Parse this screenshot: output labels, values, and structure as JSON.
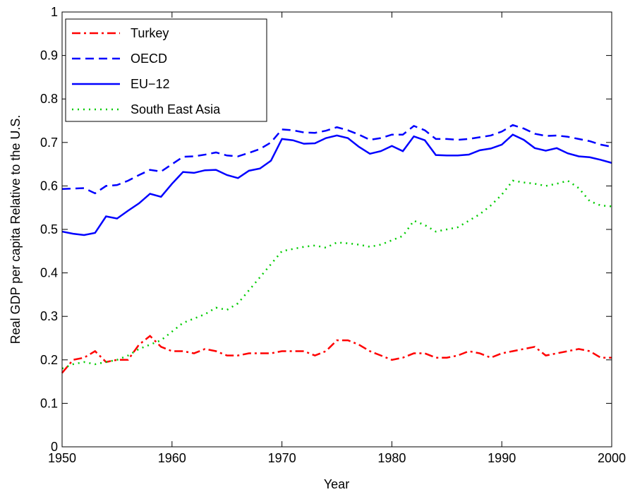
{
  "chart_data": {
    "type": "line",
    "xlabel": "Year",
    "ylabel": "Real GDP per capita Relative to the U.S.",
    "x": [
      1950,
      1951,
      1952,
      1953,
      1954,
      1955,
      1956,
      1957,
      1958,
      1959,
      1960,
      1961,
      1962,
      1963,
      1964,
      1965,
      1966,
      1967,
      1968,
      1969,
      1970,
      1971,
      1972,
      1973,
      1974,
      1975,
      1976,
      1977,
      1978,
      1979,
      1980,
      1981,
      1982,
      1983,
      1984,
      1985,
      1986,
      1987,
      1988,
      1989,
      1990,
      1991,
      1992,
      1993,
      1994,
      1995,
      1996,
      1997,
      1998,
      1999,
      2000
    ],
    "xlim": [
      1950,
      2000
    ],
    "xticks": [
      1950,
      1960,
      1970,
      1980,
      1990,
      2000
    ],
    "ylim": [
      0,
      1
    ],
    "yticks": [
      0,
      0.1,
      0.2,
      0.3,
      0.4,
      0.5,
      0.6,
      0.7,
      0.8,
      0.9,
      1
    ],
    "legend_position": "upper-left",
    "series": [
      {
        "name": "Turkey",
        "color": "#ff0000",
        "dash": "dashdot",
        "values": [
          0.17,
          0.2,
          0.205,
          0.22,
          0.195,
          0.2,
          0.2,
          0.235,
          0.255,
          0.23,
          0.22,
          0.22,
          0.215,
          0.225,
          0.22,
          0.21,
          0.21,
          0.215,
          0.215,
          0.215,
          0.22,
          0.22,
          0.22,
          0.21,
          0.22,
          0.245,
          0.245,
          0.235,
          0.22,
          0.21,
          0.2,
          0.205,
          0.215,
          0.215,
          0.205,
          0.205,
          0.21,
          0.22,
          0.215,
          0.205,
          0.215,
          0.22,
          0.225,
          0.23,
          0.21,
          0.215,
          0.22,
          0.225,
          0.22,
          0.205,
          0.205
        ]
      },
      {
        "name": "OECD",
        "color": "#0000ff",
        "dash": "dashed",
        "values": [
          0.593,
          0.594,
          0.595,
          0.583,
          0.6,
          0.602,
          0.612,
          0.625,
          0.637,
          0.633,
          0.65,
          0.667,
          0.668,
          0.672,
          0.677,
          0.67,
          0.668,
          0.676,
          0.685,
          0.7,
          0.73,
          0.728,
          0.723,
          0.722,
          0.727,
          0.735,
          0.728,
          0.718,
          0.706,
          0.71,
          0.718,
          0.718,
          0.738,
          0.728,
          0.708,
          0.708,
          0.706,
          0.708,
          0.712,
          0.716,
          0.725,
          0.74,
          0.732,
          0.72,
          0.715,
          0.716,
          0.713,
          0.708,
          0.703,
          0.695,
          0.69
        ]
      },
      {
        "name": "EU−12",
        "color": "#0000ff",
        "dash": "solid",
        "values": [
          0.495,
          0.49,
          0.487,
          0.492,
          0.53,
          0.525,
          0.543,
          0.56,
          0.582,
          0.575,
          0.605,
          0.632,
          0.63,
          0.636,
          0.637,
          0.625,
          0.618,
          0.635,
          0.64,
          0.658,
          0.708,
          0.705,
          0.697,
          0.698,
          0.71,
          0.716,
          0.71,
          0.69,
          0.674,
          0.68,
          0.692,
          0.68,
          0.714,
          0.705,
          0.671,
          0.67,
          0.67,
          0.672,
          0.682,
          0.686,
          0.695,
          0.718,
          0.706,
          0.687,
          0.681,
          0.687,
          0.675,
          0.668,
          0.666,
          0.66,
          0.653
        ]
      },
      {
        "name": "South East Asia",
        "color": "#00cc00",
        "dash": "dotted",
        "values": [
          0.18,
          0.19,
          0.195,
          0.19,
          0.195,
          0.2,
          0.21,
          0.225,
          0.235,
          0.245,
          0.265,
          0.285,
          0.295,
          0.305,
          0.32,
          0.315,
          0.33,
          0.36,
          0.39,
          0.42,
          0.45,
          0.455,
          0.46,
          0.463,
          0.458,
          0.47,
          0.468,
          0.465,
          0.46,
          0.465,
          0.475,
          0.485,
          0.52,
          0.51,
          0.495,
          0.5,
          0.505,
          0.52,
          0.535,
          0.555,
          0.58,
          0.612,
          0.608,
          0.605,
          0.6,
          0.605,
          0.612,
          0.595,
          0.565,
          0.555,
          0.553
        ]
      }
    ]
  }
}
